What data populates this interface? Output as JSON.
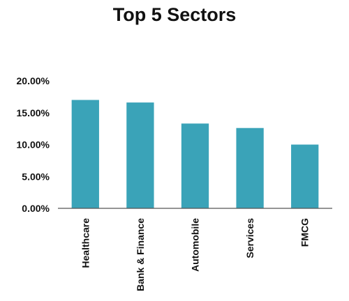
{
  "chart_data": {
    "type": "bar",
    "title": "Top 5 Sectors",
    "categories": [
      "Healthcare",
      "Bank & Finance",
      "Automobile",
      "Services",
      "FMCG"
    ],
    "values": [
      17.0,
      16.6,
      13.3,
      12.6,
      10.0
    ],
    "ylim": [
      0,
      20
    ],
    "yticks": [
      "0.00%",
      "5.00%",
      "10.00%",
      "15.00%",
      "20.00%"
    ],
    "bar_color": "#3aa3b8",
    "grid": false,
    "legend": "none"
  }
}
